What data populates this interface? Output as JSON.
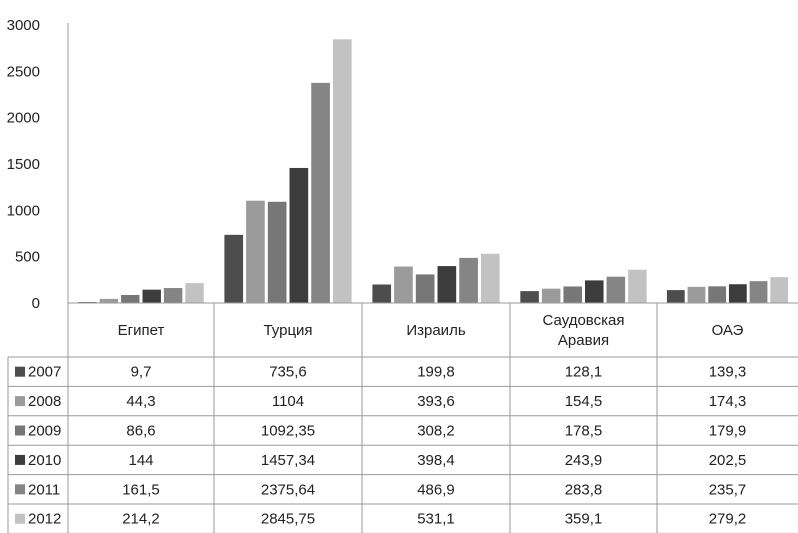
{
  "chart_data": {
    "type": "bar",
    "title": "",
    "xlabel": "",
    "ylabel": "",
    "ylim": [
      0,
      3000
    ],
    "yticks": [
      "0",
      "500",
      "1000",
      "1500",
      "2000",
      "2500",
      "3000"
    ],
    "grid": false,
    "legend": "data-table-left",
    "categories": [
      [
        "Египет"
      ],
      [
        "Турция"
      ],
      [
        "Израиль"
      ],
      [
        "Саудовская",
        "Аравия"
      ],
      [
        "ОАЭ"
      ]
    ],
    "series": [
      {
        "name": "2007",
        "color": "#4d4d4d",
        "values": [
          9.7,
          735.6,
          199.8,
          128.1,
          139.3
        ],
        "labels": [
          "9,7",
          "735,6",
          "199,8",
          "128,1",
          "139,3"
        ]
      },
      {
        "name": "2008",
        "color": "#9b9b9b",
        "values": [
          44.3,
          1104,
          393.6,
          154.5,
          174.3
        ],
        "labels": [
          "44,3",
          "1104",
          "393,6",
          "154,5",
          "174,3"
        ]
      },
      {
        "name": "2009",
        "color": "#777777",
        "values": [
          86.6,
          1092.35,
          308.2,
          178.5,
          179.9
        ],
        "labels": [
          "86,6",
          "1092,35",
          "308,2",
          "178,5",
          "179,9"
        ]
      },
      {
        "name": "2010",
        "color": "#3c3c3c",
        "values": [
          144,
          1457.34,
          398.4,
          243.9,
          202.5
        ],
        "labels": [
          "144",
          "1457,34",
          "398,4",
          "243,9",
          "202,5"
        ]
      },
      {
        "name": "2011",
        "color": "#858585",
        "values": [
          161.5,
          2375.64,
          486.9,
          283.8,
          235.7
        ],
        "labels": [
          "161,5",
          "2375,64",
          "486,9",
          "283,8",
          "235,7"
        ]
      },
      {
        "name": "2012",
        "color": "#c2c2c2",
        "values": [
          214.2,
          2845.75,
          531.1,
          359.1,
          279.2
        ],
        "labels": [
          "214,2",
          "2845,75",
          "531,1",
          "359,1",
          "279,2"
        ]
      }
    ]
  }
}
